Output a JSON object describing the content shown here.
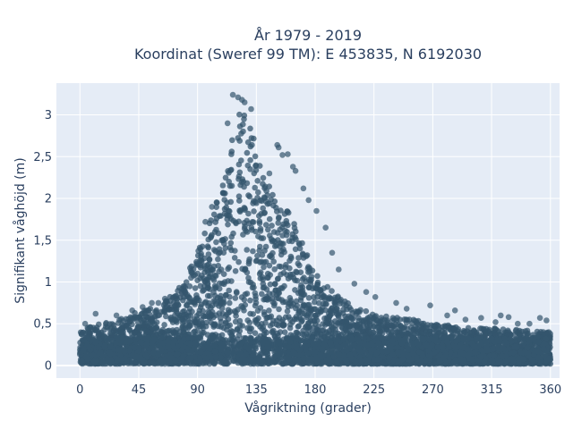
{
  "chart_data": {
    "type": "scatter",
    "title_line1": "År 1979 - 2019",
    "title_line2": "Koordinat (Sweref 99 TM): E 453835, N 6192030",
    "xlabel": "Vågriktning (grader)",
    "ylabel": "Signifikant våghöjd (m)",
    "xlim": [
      -18,
      367
    ],
    "ylim": [
      -0.15,
      3.38
    ],
    "x_ticks": [
      0,
      45,
      90,
      135,
      180,
      225,
      270,
      315,
      360
    ],
    "x_tick_labels": [
      "0",
      "45",
      "90",
      "135",
      "180",
      "225",
      "270",
      "315",
      "360"
    ],
    "y_ticks": [
      0,
      0.5,
      1,
      1.5,
      2,
      2.5,
      3
    ],
    "y_tick_labels": [
      "0",
      "0,5",
      "1",
      "1,5",
      "2",
      "2,5",
      "3"
    ],
    "grid": true,
    "colors": {
      "marker": "#34566e",
      "plot_bg": "#e5ecf6",
      "grid": "#ffffff",
      "text": "#2a3f5f"
    },
    "envelope": {
      "x": [
        0,
        10,
        20,
        30,
        45,
        60,
        70,
        80,
        90,
        100,
        110,
        115,
        120,
        125,
        130,
        135,
        140,
        150,
        160,
        170,
        180,
        190,
        200,
        210,
        225,
        240,
        255,
        270,
        285,
        300,
        315,
        330,
        345,
        360
      ],
      "y": [
        0.42,
        0.48,
        0.52,
        0.55,
        0.65,
        0.72,
        0.85,
        1.0,
        1.4,
        1.75,
        2.2,
        2.6,
        2.95,
        3.1,
        2.9,
        2.6,
        2.3,
        2.05,
        1.85,
        1.5,
        1.1,
        0.95,
        0.8,
        0.7,
        0.62,
        0.58,
        0.55,
        0.5,
        0.48,
        0.45,
        0.45,
        0.43,
        0.42,
        0.4
      ]
    },
    "outliers": [
      {
        "x": 117,
        "y": 3.24
      },
      {
        "x": 121,
        "y": 3.21
      },
      {
        "x": 126,
        "y": 3.15
      },
      {
        "x": 131,
        "y": 3.07
      },
      {
        "x": 113,
        "y": 2.9
      },
      {
        "x": 124,
        "y": 3.18
      },
      {
        "x": 151,
        "y": 2.64
      },
      {
        "x": 152,
        "y": 2.61
      },
      {
        "x": 155,
        "y": 2.52
      },
      {
        "x": 159,
        "y": 2.53
      },
      {
        "x": 163,
        "y": 2.38
      },
      {
        "x": 165,
        "y": 2.33
      },
      {
        "x": 145,
        "y": 2.3
      },
      {
        "x": 171,
        "y": 2.12
      },
      {
        "x": 175,
        "y": 1.98
      },
      {
        "x": 181,
        "y": 1.85
      },
      {
        "x": 188,
        "y": 1.65
      },
      {
        "x": 193,
        "y": 1.35
      },
      {
        "x": 198,
        "y": 1.15
      },
      {
        "x": 96,
        "y": 1.72
      },
      {
        "x": 101,
        "y": 1.9
      },
      {
        "x": 90,
        "y": 1.1
      },
      {
        "x": 85,
        "y": 1.05
      },
      {
        "x": 80,
        "y": 0.95
      },
      {
        "x": 78,
        "y": 0.86
      },
      {
        "x": 72,
        "y": 0.82
      },
      {
        "x": 65,
        "y": 0.8
      },
      {
        "x": 60,
        "y": 0.75
      },
      {
        "x": 55,
        "y": 0.75
      },
      {
        "x": 48,
        "y": 0.7
      },
      {
        "x": 40,
        "y": 0.66
      },
      {
        "x": 28,
        "y": 0.6
      },
      {
        "x": 12,
        "y": 0.62
      },
      {
        "x": 4,
        "y": 0.5
      },
      {
        "x": 210,
        "y": 0.98
      },
      {
        "x": 219,
        "y": 0.88
      },
      {
        "x": 226,
        "y": 0.82
      },
      {
        "x": 242,
        "y": 0.75
      },
      {
        "x": 250,
        "y": 0.68
      },
      {
        "x": 268,
        "y": 0.72
      },
      {
        "x": 281,
        "y": 0.6
      },
      {
        "x": 287,
        "y": 0.66
      },
      {
        "x": 295,
        "y": 0.55
      },
      {
        "x": 307,
        "y": 0.57
      },
      {
        "x": 318,
        "y": 0.52
      },
      {
        "x": 322,
        "y": 0.6
      },
      {
        "x": 328,
        "y": 0.58
      },
      {
        "x": 335,
        "y": 0.5
      },
      {
        "x": 344,
        "y": 0.5
      },
      {
        "x": 352,
        "y": 0.57
      },
      {
        "x": 357,
        "y": 0.54
      }
    ]
  }
}
